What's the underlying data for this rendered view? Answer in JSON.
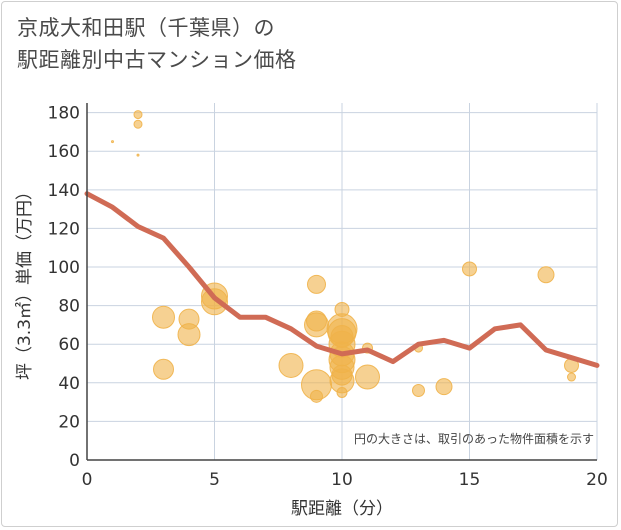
{
  "title": {
    "line1": "京成大和田駅（千葉県）の",
    "line2": "駅距離別中古マンション価格"
  },
  "chart_data": {
    "type": "scatter",
    "x_axis": {
      "label": "駅距離（分）",
      "range": [
        0,
        20
      ],
      "ticks": [
        0,
        5,
        10,
        15,
        20
      ]
    },
    "y_axis": {
      "label": "坪（3.3㎡）単価（万円）",
      "range": [
        0,
        185
      ],
      "ticks": [
        0,
        20,
        40,
        60,
        80,
        100,
        120,
        140,
        160,
        180
      ]
    },
    "note": "円の大きさは、取引のあった物件面積を示す",
    "bubbles": [
      {
        "x": 1,
        "y": 165,
        "s": 1
      },
      {
        "x": 2,
        "y": 179,
        "s": 4
      },
      {
        "x": 2,
        "y": 174,
        "s": 4
      },
      {
        "x": 2,
        "y": 158,
        "s": 1
      },
      {
        "x": 3,
        "y": 74,
        "s": 11
      },
      {
        "x": 3,
        "y": 47,
        "s": 10
      },
      {
        "x": 4,
        "y": 73,
        "s": 10
      },
      {
        "x": 4,
        "y": 65,
        "s": 11
      },
      {
        "x": 5,
        "y": 85,
        "s": 13
      },
      {
        "x": 5,
        "y": 82,
        "s": 13
      },
      {
        "x": 8,
        "y": 49,
        "s": 12
      },
      {
        "x": 9,
        "y": 91,
        "s": 9
      },
      {
        "x": 9,
        "y": 72,
        "s": 10
      },
      {
        "x": 9,
        "y": 70,
        "s": 12
      },
      {
        "x": 9,
        "y": 39,
        "s": 15
      },
      {
        "x": 9,
        "y": 33,
        "s": 6
      },
      {
        "x": 10,
        "y": 78,
        "s": 7
      },
      {
        "x": 10,
        "y": 68,
        "s": 15
      },
      {
        "x": 10,
        "y": 66,
        "s": 14
      },
      {
        "x": 10,
        "y": 64,
        "s": 11
      },
      {
        "x": 10,
        "y": 60,
        "s": 13
      },
      {
        "x": 10,
        "y": 55,
        "s": 12
      },
      {
        "x": 10,
        "y": 52,
        "s": 13
      },
      {
        "x": 10,
        "y": 48,
        "s": 12
      },
      {
        "x": 10,
        "y": 44,
        "s": 10
      },
      {
        "x": 10,
        "y": 41,
        "s": 12
      },
      {
        "x": 10,
        "y": 35,
        "s": 5
      },
      {
        "x": 11,
        "y": 58,
        "s": 5
      },
      {
        "x": 11,
        "y": 43,
        "s": 12
      },
      {
        "x": 13,
        "y": 58,
        "s": 4
      },
      {
        "x": 13,
        "y": 36,
        "s": 6
      },
      {
        "x": 14,
        "y": 38,
        "s": 8
      },
      {
        "x": 15,
        "y": 99,
        "s": 7
      },
      {
        "x": 18,
        "y": 96,
        "s": 8
      },
      {
        "x": 19,
        "y": 49,
        "s": 7
      },
      {
        "x": 19,
        "y": 43,
        "s": 4
      }
    ],
    "trend_line": {
      "x": [
        0,
        1,
        2,
        3,
        4,
        5,
        6,
        7,
        8,
        9,
        10,
        11,
        12,
        13,
        14,
        15,
        16,
        17,
        18,
        19,
        20
      ],
      "y": [
        138,
        131,
        121,
        115,
        100,
        84,
        74,
        74,
        68,
        59,
        55,
        57,
        51,
        60,
        62,
        58,
        68,
        70,
        57,
        53,
        49
      ]
    },
    "colors": {
      "bubble": "#f0b24a",
      "line": "#d06b55",
      "grid": "#c9d3e0"
    }
  }
}
